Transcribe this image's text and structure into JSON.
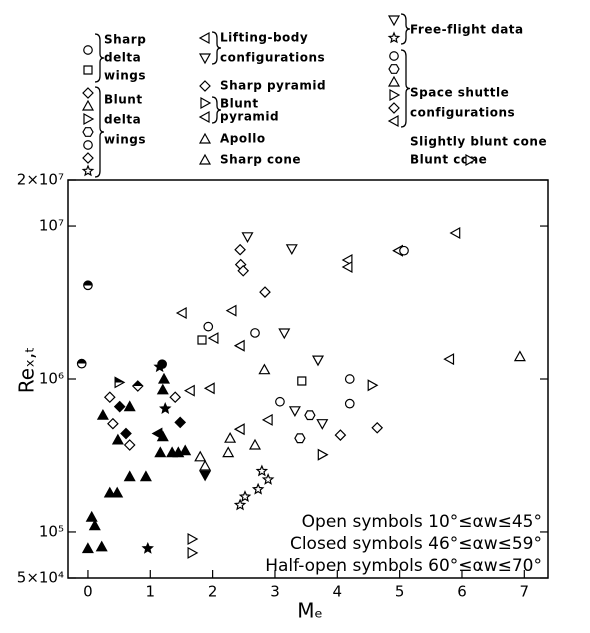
{
  "chart_data": {
    "type": "scatter",
    "x_label": "Mₑ",
    "y_label": "Reₓ,ₜ",
    "xlim": [
      -0.32,
      7.38
    ],
    "xticks": [
      0,
      1,
      2,
      3,
      4,
      5,
      6,
      7
    ],
    "ylim": [
      50000,
      20000000
    ],
    "log_y": true,
    "yticks": [
      {
        "value": 50000,
        "label": "5×10⁴"
      },
      {
        "value": 100000,
        "label": "10⁵"
      },
      {
        "value": 1000000,
        "label": "10⁶"
      },
      {
        "value": 10000000,
        "label": "10⁷"
      },
      {
        "value": 20000000,
        "label": "2×10⁷"
      }
    ],
    "legend_items": [
      {
        "lines": [
          "Sharp",
          "delta",
          "wings"
        ],
        "markers": [
          "circle",
          "square"
        ]
      },
      {
        "lines": [
          "Blunt",
          "delta",
          "wings"
        ],
        "markers": [
          "diamond",
          "triangle",
          "triangle-right",
          "hexagon",
          "circle",
          "diamond",
          "star"
        ]
      },
      {
        "lines": [
          "Lifting-body",
          "configurations"
        ],
        "markers": [
          "triangle-left",
          "triangle-down"
        ]
      },
      {
        "lines": [
          "Sharp pyramid"
        ],
        "markers": [
          "diamond"
        ]
      },
      {
        "lines": [
          "Blunt",
          "pyramid"
        ],
        "markers": [
          "triangle-right",
          "triangle-left"
        ]
      },
      {
        "lines": [
          "Apollo"
        ],
        "markers": [
          "triangle"
        ]
      },
      {
        "lines": [
          "Sharp cone"
        ],
        "markers": [
          "triangle"
        ]
      },
      {
        "lines": [
          "Free-flight data"
        ],
        "markers": [
          "triangle-down",
          "star"
        ]
      },
      {
        "lines": [
          "Space shuttle",
          "configurations"
        ],
        "markers": [
          "circle",
          "hexagon",
          "triangle",
          "triangle-right",
          "diamond",
          "triangle-left"
        ]
      },
      {
        "lines": [
          "Slightly blunt cone"
        ],
        "markers": []
      },
      {
        "lines": [
          "Blunt cone"
        ],
        "markers": [
          "triangle-right"
        ]
      }
    ],
    "series": [
      {
        "name": "Open symbols 10°≤αw≤45°",
        "style": "open",
        "color": "#000",
        "x": [
          2.56,
          2.44,
          2.45,
          2.49,
          2.84,
          3.27,
          4.17,
          4.17,
          4.98,
          5.07,
          5.9,
          5.8,
          6.93,
          1.93,
          1.83,
          2.02,
          1.51,
          2.31,
          2.44,
          2.68,
          3.15,
          3.69,
          2.83,
          4.2,
          4.56,
          3.43,
          1.96,
          1.4,
          1.64,
          3.08,
          3.32,
          3.56,
          3.76,
          2.89,
          2.44,
          2.28,
          2.68,
          3.4,
          4.05,
          4.2,
          4.64,
          3.76,
          1.8,
          1.88,
          2.25,
          2.79,
          2.89,
          2.73,
          2.52,
          2.44,
          1.67,
          1.67,
          0.4,
          0.67,
          0.35
        ],
        "values": [
          8500000,
          7000000,
          5600000,
          5100000,
          3700000,
          7100000,
          6000000,
          5400000,
          6900000,
          6900000,
          9000000,
          1350000,
          1400000,
          2200000,
          1800000,
          1850000,
          2700000,
          2800000,
          1650000,
          2000000,
          2000000,
          1330000,
          1150000,
          1000000,
          910000,
          970000,
          870000,
          760000,
          840000,
          710000,
          620000,
          580000,
          510000,
          540000,
          470000,
          410000,
          370000,
          410000,
          430000,
          690000,
          480000,
          320000,
          310000,
          270000,
          330000,
          250000,
          220000,
          190000,
          170000,
          150000,
          90000,
          73000,
          510000,
          370000,
          760000
        ],
        "markers": [
          "triangle-down",
          "diamond",
          "diamond",
          "diamond",
          "diamond",
          "triangle-down",
          "triangle-left",
          "triangle-left",
          "triangle-left",
          "circle",
          "triangle-left",
          "triangle-left",
          "triangle",
          "circle",
          "square",
          "triangle-left",
          "triangle-left",
          "triangle-left",
          "triangle-left",
          "circle",
          "triangle-down",
          "triangle-down",
          "triangle",
          "circle",
          "triangle-right",
          "square",
          "triangle-left",
          "diamond",
          "triangle-left",
          "circle",
          "triangle-down",
          "hexagon",
          "triangle-down",
          "triangle-left",
          "triangle-left",
          "triangle",
          "triangle",
          "hexagon",
          "diamond",
          "circle",
          "diamond",
          "triangle-right",
          "triangle",
          "triangle",
          "triangle",
          "star",
          "star",
          "star",
          "star",
          "star",
          "triangle-right",
          "triangle-right",
          "diamond",
          "diamond",
          "diamond"
        ]
      },
      {
        "name": "Closed symbols 46°≤αw≤59°",
        "style": "closed",
        "color": "#000",
        "x": [
          1.19,
          1.15,
          1.22,
          1.2,
          1.24,
          1.48,
          1.12,
          1.2,
          1.16,
          1.35,
          1.45,
          1.56,
          0.67,
          0.93,
          1.88,
          0.35,
          0.47,
          0.06,
          0.11,
          0.22,
          0.0,
          0.96,
          0.51,
          0.67,
          0.24,
          0.61,
          0.48
        ],
        "values": [
          1250000,
          1200000,
          1000000,
          850000,
          640000,
          520000,
          440000,
          420000,
          330000,
          330000,
          330000,
          340000,
          230000,
          230000,
          235000,
          180000,
          180000,
          125000,
          110000,
          80000,
          78000,
          78000,
          660000,
          660000,
          580000,
          440000,
          400000
        ],
        "markers": [
          "circle",
          "star",
          "triangle",
          "triangle",
          "star",
          "diamond",
          "triangle-left",
          "triangle",
          "triangle",
          "triangle",
          "triangle",
          "triangle",
          "triangle",
          "triangle",
          "triangle-down",
          "triangle",
          "triangle",
          "triangle",
          "triangle",
          "triangle",
          "triangle",
          "star",
          "diamond",
          "triangle",
          "triangle",
          "diamond",
          "triangle"
        ]
      },
      {
        "name": "Half-open symbols 60°≤αw≤70°",
        "style": "half-open",
        "color": "#000",
        "x": [
          0.0,
          -0.1,
          0.5,
          0.8
        ],
        "values": [
          4100000,
          1260000,
          950000,
          900000
        ],
        "markers": [
          "circle",
          "circle",
          "triangle-right",
          "diamond"
        ]
      }
    ]
  }
}
